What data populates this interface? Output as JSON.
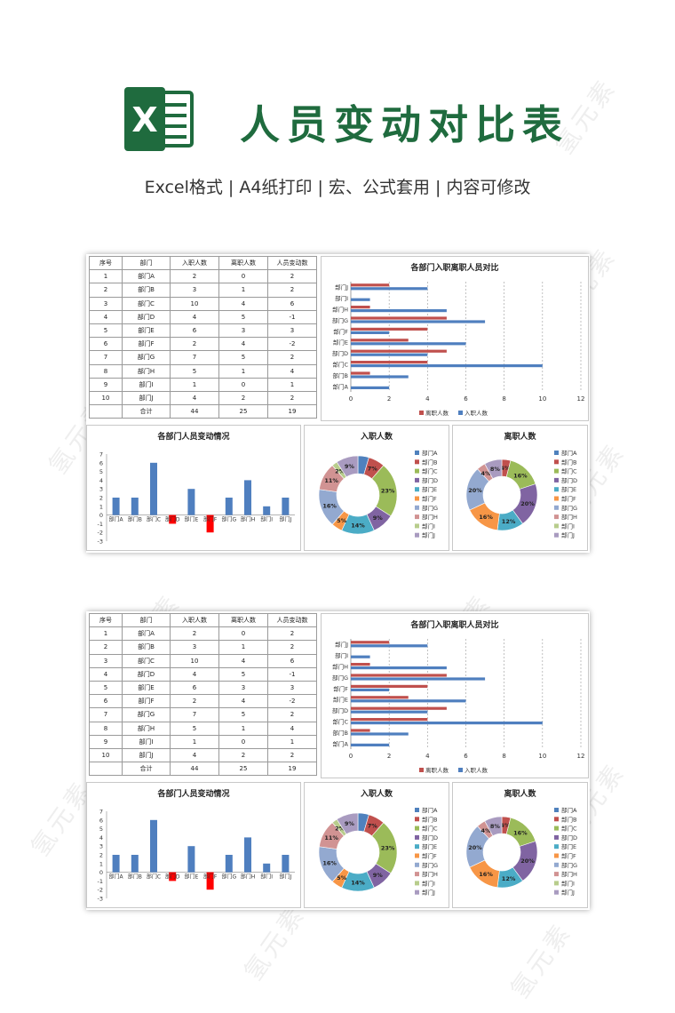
{
  "header": {
    "title": "人员变动对比表",
    "subtitle": "Excel格式 |  A4纸打印 | 宏、公式套用 | 内容可修改",
    "logo_letter": "X"
  },
  "watermark": "氢元素",
  "table": {
    "columns": [
      "序号",
      "部门",
      "入职人数",
      "离职人数",
      "人员变动数"
    ],
    "rows": [
      [
        "1",
        "部门A",
        "2",
        "0",
        "2"
      ],
      [
        "2",
        "部门B",
        "3",
        "1",
        "2"
      ],
      [
        "3",
        "部门C",
        "10",
        "4",
        "6"
      ],
      [
        "4",
        "部门D",
        "4",
        "5",
        "-1"
      ],
      [
        "5",
        "部门E",
        "6",
        "3",
        "3"
      ],
      [
        "6",
        "部门F",
        "2",
        "4",
        "-2"
      ],
      [
        "7",
        "部门G",
        "7",
        "5",
        "2"
      ],
      [
        "8",
        "部门H",
        "5",
        "1",
        "4"
      ],
      [
        "9",
        "部门I",
        "1",
        "0",
        "1"
      ],
      [
        "10",
        "部门J",
        "4",
        "2",
        "2"
      ]
    ],
    "total": [
      "",
      "合计",
      "44",
      "25",
      "19"
    ]
  },
  "colors": {
    "hire": "#4f7fbf",
    "leave": "#c0504d",
    "negative": "#ff0000",
    "brand_green": "#1f6b3e",
    "pie": [
      "#4f81bd",
      "#c0504d",
      "#9bbb59",
      "#8064a2",
      "#4bacc6",
      "#f79646",
      "#93a9d0",
      "#d19393",
      "#b8cd8c",
      "#a99bc0"
    ]
  },
  "chart_data": [
    {
      "type": "bar",
      "orientation": "horizontal",
      "title": "各部门入职离职人员对比",
      "categories": [
        "部门A",
        "部门B",
        "部门C",
        "部门D",
        "部门E",
        "部门F",
        "部门G",
        "部门H",
        "部门I",
        "部门J"
      ],
      "series": [
        {
          "name": "离职人数",
          "values": [
            0,
            1,
            4,
            5,
            3,
            4,
            5,
            1,
            0,
            2
          ]
        },
        {
          "name": "入职人数",
          "values": [
            2,
            3,
            10,
            4,
            6,
            2,
            7,
            5,
            1,
            4
          ]
        }
      ],
      "xlim": [
        0,
        12
      ],
      "xticks": [
        0,
        2,
        4,
        6,
        8,
        10,
        12
      ],
      "legend": "bottom",
      "grid": "vertical dashed"
    },
    {
      "type": "bar",
      "title": "各部门人员变动情况",
      "categories": [
        "部门A",
        "部门B",
        "部门C",
        "部门D",
        "部门E",
        "部门F",
        "部门G",
        "部门H",
        "部门I",
        "部门J"
      ],
      "values": [
        2,
        2,
        6,
        -1,
        3,
        -2,
        2,
        4,
        1,
        2
      ],
      "ylim": [
        -3,
        7
      ],
      "yticks": [
        -3,
        -2,
        -1,
        0,
        1,
        2,
        3,
        4,
        5,
        6,
        7
      ]
    },
    {
      "type": "pie",
      "variant": "doughnut",
      "title": "入职人数",
      "labels": [
        "部门A",
        "部门B",
        "部门C",
        "部门D",
        "部门E",
        "部门F",
        "部门G",
        "部门H",
        "部门I",
        "部门J"
      ],
      "values": [
        2,
        3,
        10,
        4,
        6,
        2,
        7,
        5,
        1,
        4
      ],
      "data_labels": [
        "",
        "7%",
        "23%",
        "9%",
        "14%",
        "5%",
        "16%",
        "11%",
        "2%",
        "9%"
      ],
      "legend": "right"
    },
    {
      "type": "pie",
      "variant": "doughnut",
      "title": "离职人数",
      "labels": [
        "部门A",
        "部门B",
        "部门C",
        "部门D",
        "部门E",
        "部门F",
        "部门G",
        "部门H",
        "部门I",
        "部门J"
      ],
      "values": [
        0,
        1,
        4,
        5,
        3,
        4,
        5,
        1,
        0,
        2
      ],
      "data_labels": [
        "",
        "4%",
        "16%",
        "20%",
        "12%",
        "16%",
        "20%",
        "4%",
        "",
        "8%"
      ],
      "legend": "right"
    }
  ]
}
